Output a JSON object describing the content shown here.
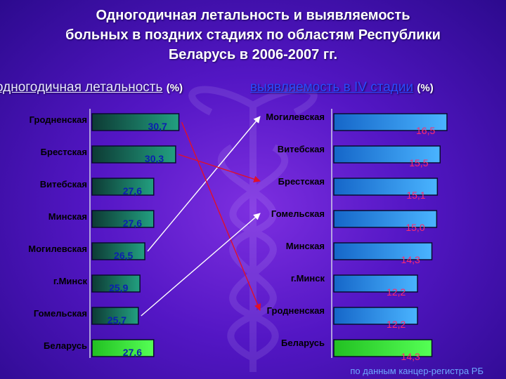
{
  "title_lines": [
    "Одногодичная летальность и выявляемость",
    "больных в поздних стадиях по областям Республики",
    "Беларусь в 2006-2007 гг."
  ],
  "chart_data": [
    {
      "type": "bar",
      "orientation": "horizontal",
      "title": "одногодичная летальность",
      "unit": "(%)",
      "categories": [
        "Гродненская",
        "Брестская",
        "Витебская",
        "Минская",
        "Могилевская",
        "г.Минск",
        "Гомельская",
        "Беларусь"
      ],
      "values": [
        30.7,
        30.3,
        27.6,
        27.6,
        26.5,
        25.9,
        25.7,
        27.6
      ],
      "value_labels": [
        "30,7",
        "30,3",
        "27,6",
        "27,6",
        "26,5",
        "25,9",
        "25,7",
        "27,6"
      ],
      "xlim": [
        20,
        31
      ]
    },
    {
      "type": "bar",
      "orientation": "horizontal",
      "title": "выявляемость в IV стадии",
      "unit": "(%)",
      "categories": [
        "Могилевская",
        "Витебская",
        "Брестская",
        "Гомельская",
        "Минская",
        "г.Минск",
        "Гродненская",
        "Беларусь"
      ],
      "values": [
        16.5,
        15.5,
        15.1,
        15.0,
        14.3,
        12.2,
        12.2,
        14.3
      ],
      "value_labels": [
        "16,5",
        "15,5",
        "15,1",
        "15,0",
        "14,3",
        "12,2",
        "12,2",
        "14,3"
      ],
      "xlim": [
        0,
        16.5
      ]
    }
  ],
  "connections": [
    {
      "from": "Могилевская",
      "to": "Могилевская",
      "color": "#ffffff"
    },
    {
      "from": "Брестская",
      "to": "Брестская",
      "color": "#e0102a"
    },
    {
      "from": "Гродненская",
      "to": "Гродненская",
      "color": "#e0102a"
    },
    {
      "from": "Гомельская",
      "to": "Гомельская",
      "color": "#ffffff"
    }
  ],
  "colors": {
    "bar_left": "#1c8a6e",
    "bar_right": "#3aa0ee",
    "bar_total": "#33dd33",
    "left_heading": "#e8e8ff",
    "right_heading": "#2a4cff"
  },
  "source": "по данным канцер-регистра РБ"
}
